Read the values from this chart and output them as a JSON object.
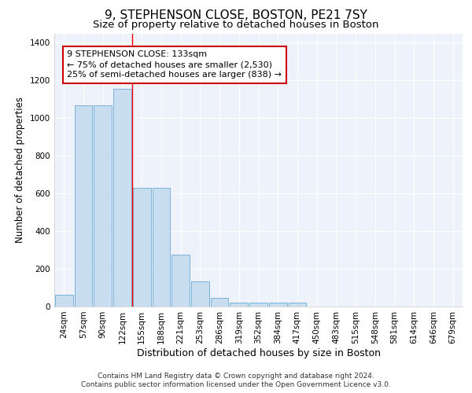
{
  "title": "9, STEPHENSON CLOSE, BOSTON, PE21 7SY",
  "subtitle": "Size of property relative to detached houses in Boston",
  "xlabel": "Distribution of detached houses by size in Boston",
  "ylabel": "Number of detached properties",
  "categories": [
    "24sqm",
    "57sqm",
    "90sqm",
    "122sqm",
    "155sqm",
    "188sqm",
    "221sqm",
    "253sqm",
    "286sqm",
    "319sqm",
    "352sqm",
    "384sqm",
    "417sqm",
    "450sqm",
    "483sqm",
    "515sqm",
    "548sqm",
    "581sqm",
    "614sqm",
    "646sqm",
    "679sqm"
  ],
  "values": [
    62,
    1070,
    1070,
    1155,
    630,
    630,
    275,
    135,
    45,
    20,
    20,
    20,
    20,
    0,
    0,
    0,
    0,
    0,
    0,
    0,
    0
  ],
  "bar_color": "#c9ddf0",
  "bar_edge_color": "#6aaad4",
  "red_line_x": 3.5,
  "annotation_text": "9 STEPHENSON CLOSE: 133sqm\n← 75% of detached houses are smaller (2,530)\n25% of semi-detached houses are larger (838) →",
  "annotation_box_color": "#ffffff",
  "annotation_box_edge_color": "#cc0000",
  "ylim": [
    0,
    1450
  ],
  "yticks": [
    0,
    200,
    400,
    600,
    800,
    1000,
    1200,
    1400
  ],
  "footer_line1": "Contains HM Land Registry data © Crown copyright and database right 2024.",
  "footer_line2": "Contains public sector information licensed under the Open Government Licence v3.0.",
  "background_color": "#eef2fb",
  "grid_color": "#ffffff",
  "title_fontsize": 11,
  "subtitle_fontsize": 9.5,
  "ylabel_fontsize": 8.5,
  "xlabel_fontsize": 9,
  "tick_fontsize": 7.5,
  "annotation_fontsize": 8,
  "footer_fontsize": 6.5
}
